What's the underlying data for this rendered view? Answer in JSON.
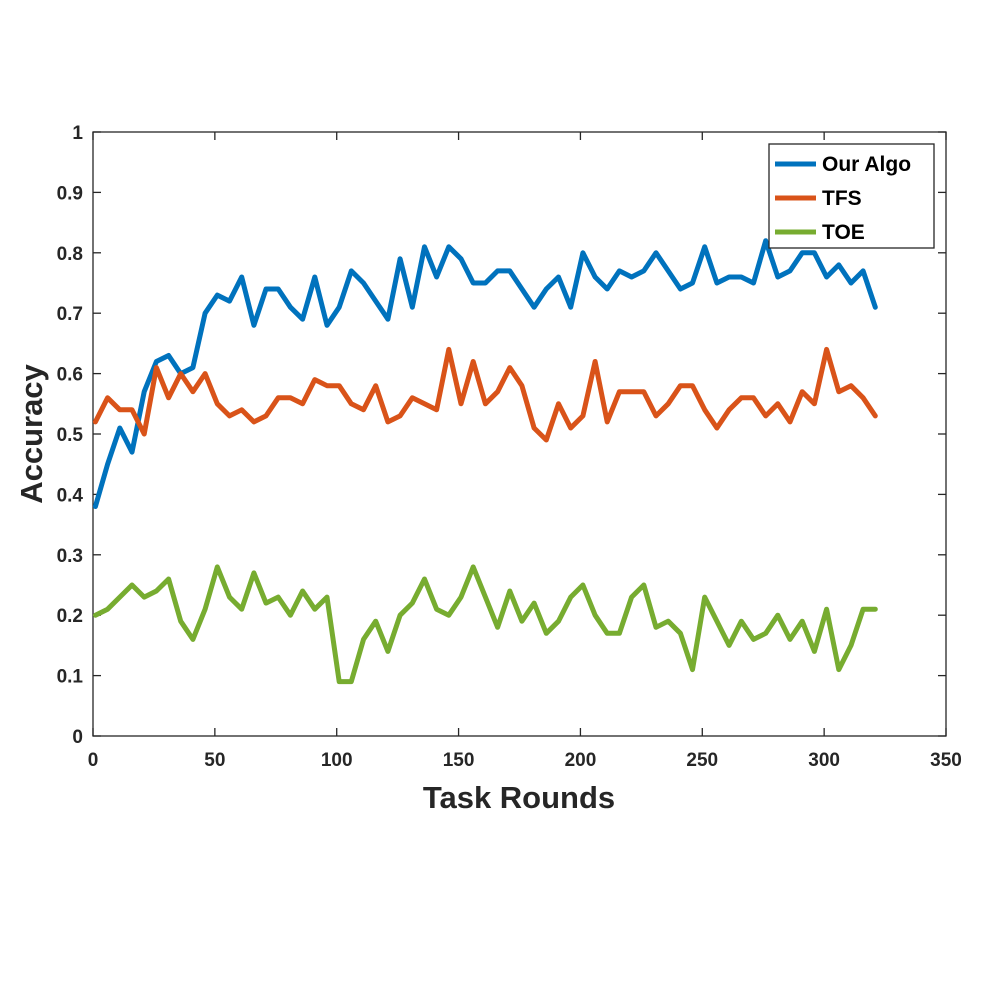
{
  "chart_data": {
    "type": "line",
    "xlabel": "Task Rounds",
    "ylabel": "Accuracy",
    "xlim": [
      0,
      350
    ],
    "ylim": [
      0,
      1
    ],
    "xticks": [
      0,
      50,
      100,
      150,
      200,
      250,
      300,
      350
    ],
    "yticks": [
      0,
      0.1,
      0.2,
      0.3,
      0.4,
      0.5,
      0.6,
      0.7,
      0.8,
      0.9,
      1
    ],
    "xtick_labels": [
      "0",
      "50",
      "100",
      "150",
      "200",
      "250",
      "300",
      "350"
    ],
    "ytick_labels": [
      "0",
      "0.1",
      "0.2",
      "0.3",
      "0.4",
      "0.5",
      "0.6",
      "0.7",
      "0.8",
      "0.9",
      "1"
    ],
    "grid": false,
    "legend_position": "top-right",
    "x": [
      1,
      6,
      11,
      16,
      21,
      26,
      31,
      36,
      41,
      46,
      51,
      56,
      61,
      66,
      71,
      76,
      81,
      86,
      91,
      96,
      101,
      106,
      111,
      116,
      121,
      126,
      131,
      136,
      141,
      146,
      151,
      156,
      161,
      166,
      171,
      176,
      181,
      186,
      191,
      196,
      201,
      206,
      211,
      216,
      221,
      226,
      231,
      236,
      241,
      246,
      251,
      256,
      261,
      266,
      271,
      276,
      281,
      286,
      291,
      296,
      301,
      306,
      311,
      316,
      321
    ],
    "series": [
      {
        "name": "Our Algo",
        "color": "#0072bd",
        "values": [
          0.38,
          0.45,
          0.51,
          0.47,
          0.57,
          0.62,
          0.63,
          0.6,
          0.61,
          0.7,
          0.73,
          0.72,
          0.76,
          0.68,
          0.74,
          0.74,
          0.71,
          0.69,
          0.76,
          0.68,
          0.71,
          0.77,
          0.75,
          0.72,
          0.69,
          0.79,
          0.71,
          0.81,
          0.76,
          0.81,
          0.79,
          0.75,
          0.75,
          0.77,
          0.77,
          0.74,
          0.71,
          0.74,
          0.76,
          0.71,
          0.8,
          0.76,
          0.74,
          0.77,
          0.76,
          0.77,
          0.8,
          0.77,
          0.74,
          0.75,
          0.81,
          0.75,
          0.76,
          0.76,
          0.75,
          0.82,
          0.76,
          0.77,
          0.8,
          0.8,
          0.76,
          0.78,
          0.75,
          0.77,
          0.71
        ]
      },
      {
        "name": "TFS",
        "color": "#d95319",
        "values": [
          0.52,
          0.56,
          0.54,
          0.54,
          0.5,
          0.61,
          0.56,
          0.6,
          0.57,
          0.6,
          0.55,
          0.53,
          0.54,
          0.52,
          0.53,
          0.56,
          0.56,
          0.55,
          0.59,
          0.58,
          0.58,
          0.55,
          0.54,
          0.58,
          0.52,
          0.53,
          0.56,
          0.55,
          0.54,
          0.64,
          0.55,
          0.62,
          0.55,
          0.57,
          0.61,
          0.58,
          0.51,
          0.49,
          0.55,
          0.51,
          0.53,
          0.62,
          0.52,
          0.57,
          0.57,
          0.57,
          0.53,
          0.55,
          0.58,
          0.58,
          0.54,
          0.51,
          0.54,
          0.56,
          0.56,
          0.53,
          0.55,
          0.52,
          0.57,
          0.55,
          0.64,
          0.57,
          0.58,
          0.56,
          0.53
        ]
      },
      {
        "name": "TOE",
        "color": "#77ac30",
        "values": [
          0.2,
          0.21,
          0.23,
          0.25,
          0.23,
          0.24,
          0.26,
          0.19,
          0.16,
          0.21,
          0.28,
          0.23,
          0.21,
          0.27,
          0.22,
          0.23,
          0.2,
          0.24,
          0.21,
          0.23,
          0.09,
          0.09,
          0.16,
          0.19,
          0.14,
          0.2,
          0.22,
          0.26,
          0.21,
          0.2,
          0.23,
          0.28,
          0.23,
          0.18,
          0.24,
          0.19,
          0.22,
          0.17,
          0.19,
          0.23,
          0.25,
          0.2,
          0.17,
          0.17,
          0.23,
          0.25,
          0.18,
          0.19,
          0.17,
          0.11,
          0.23,
          0.19,
          0.15,
          0.19,
          0.16,
          0.17,
          0.2,
          0.16,
          0.19,
          0.14,
          0.21,
          0.11,
          0.15,
          0.21,
          0.21
        ]
      }
    ]
  }
}
